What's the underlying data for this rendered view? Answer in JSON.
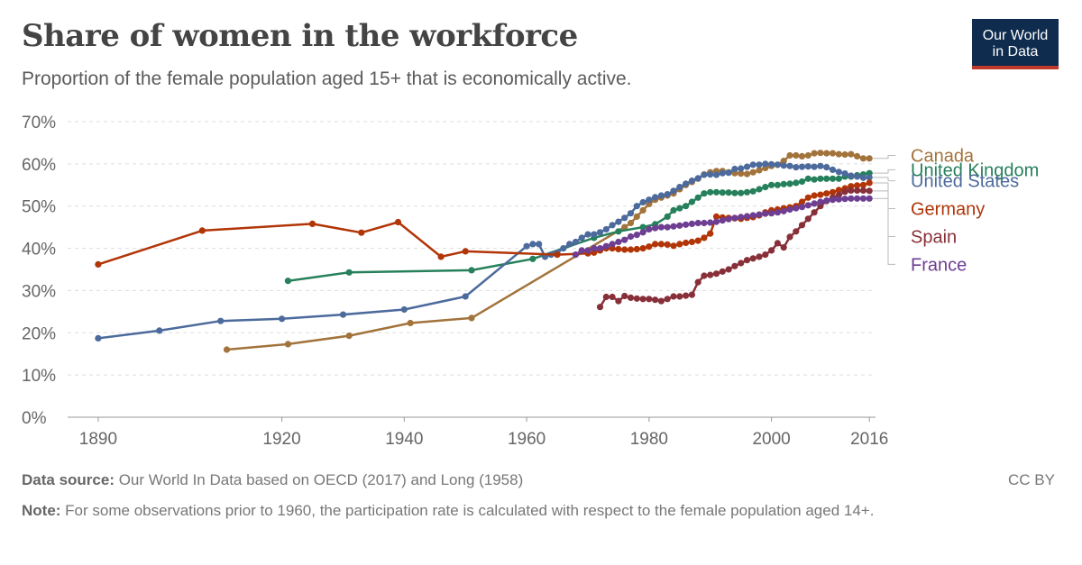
{
  "header": {
    "title": "Share of women in the workforce",
    "subtitle": "Proportion of the female population aged 15+ that is economically active.",
    "logo_line1": "Our World",
    "logo_line2": "in Data"
  },
  "footer": {
    "source_label": "Data source:",
    "source_text": " Our World In Data based on OECD (2017) and Long (1958)",
    "license": "CC BY",
    "note_label": "Note:",
    "note_text": " For some observations prior to 1960, the participation rate is calculated with respect to the female population aged 14+."
  },
  "chart_data": {
    "type": "line",
    "title": "Share of women in the workforce",
    "xlabel": "",
    "ylabel": "",
    "xlim": [
      1885,
      2017
    ],
    "ylim": [
      0,
      70
    ],
    "x_ticks": [
      1890,
      1920,
      1940,
      1960,
      1980,
      2000,
      2016
    ],
    "y_ticks": [
      0,
      10,
      20,
      30,
      40,
      50,
      60,
      70
    ],
    "y_tick_labels": [
      "0%",
      "10%",
      "20%",
      "30%",
      "40%",
      "50%",
      "60%",
      "70%"
    ],
    "grid": "horizontal dashed",
    "legend": "right end labels",
    "series": [
      {
        "name": "Canada",
        "color": "#a2733b",
        "label_y": 62.0,
        "points": [
          [
            1911,
            16
          ],
          [
            1921,
            17.3
          ],
          [
            1931,
            19.3
          ],
          [
            1941,
            22.3
          ],
          [
            1951,
            23.5
          ],
          [
            1976,
            45
          ],
          [
            1977,
            46
          ],
          [
            1978,
            47.5
          ],
          [
            1979,
            49
          ],
          [
            1980,
            50.5
          ],
          [
            1981,
            51.5
          ],
          [
            1982,
            52
          ],
          [
            1983,
            52.5
          ],
          [
            1984,
            53
          ],
          [
            1985,
            54
          ],
          [
            1986,
            55
          ],
          [
            1987,
            55.7
          ],
          [
            1988,
            56.5
          ],
          [
            1989,
            57.5
          ],
          [
            1990,
            58
          ],
          [
            1991,
            58.3
          ],
          [
            1992,
            58.3
          ],
          [
            1993,
            58
          ],
          [
            1994,
            57.8
          ],
          [
            1995,
            57.7
          ],
          [
            1996,
            57.6
          ],
          [
            1997,
            58
          ],
          [
            1998,
            58.5
          ],
          [
            1999,
            59
          ],
          [
            2000,
            59.5
          ],
          [
            2001,
            59.8
          ],
          [
            2002,
            60.7
          ],
          [
            2003,
            62
          ],
          [
            2004,
            62
          ],
          [
            2005,
            61.8
          ],
          [
            2006,
            62
          ],
          [
            2007,
            62.5
          ],
          [
            2008,
            62.6
          ],
          [
            2009,
            62.5
          ],
          [
            2010,
            62.5
          ],
          [
            2011,
            62.3
          ],
          [
            2012,
            62.2
          ],
          [
            2013,
            62.3
          ],
          [
            2014,
            61.8
          ],
          [
            2015,
            61.3
          ],
          [
            2016,
            61.3
          ]
        ]
      },
      {
        "name": "United Kingdom",
        "color": "#26805b",
        "label_y": 58.6,
        "points": [
          [
            1921,
            32.3
          ],
          [
            1931,
            34.3
          ],
          [
            1951,
            34.8
          ],
          [
            1961,
            37.5
          ],
          [
            1971,
            42.5
          ],
          [
            1975,
            44
          ],
          [
            1979,
            45
          ],
          [
            1981,
            45.7
          ],
          [
            1983,
            47.5
          ],
          [
            1984,
            49
          ],
          [
            1985,
            49.5
          ],
          [
            1986,
            50
          ],
          [
            1987,
            51
          ],
          [
            1988,
            52
          ],
          [
            1989,
            53
          ],
          [
            1990,
            53.3
          ],
          [
            1991,
            53.3
          ],
          [
            1992,
            53.2
          ],
          [
            1993,
            53.2
          ],
          [
            1994,
            53.1
          ],
          [
            1995,
            53.1
          ],
          [
            1996,
            53.3
          ],
          [
            1997,
            53.5
          ],
          [
            1998,
            54
          ],
          [
            1999,
            54.5
          ],
          [
            2000,
            55
          ],
          [
            2001,
            55
          ],
          [
            2002,
            55.2
          ],
          [
            2003,
            55.3
          ],
          [
            2004,
            55.5
          ],
          [
            2005,
            55.8
          ],
          [
            2006,
            56.5
          ],
          [
            2007,
            56.3
          ],
          [
            2008,
            56.5
          ],
          [
            2009,
            56.5
          ],
          [
            2010,
            56.5
          ],
          [
            2011,
            56.5
          ],
          [
            2012,
            57
          ],
          [
            2013,
            57
          ],
          [
            2014,
            57.3
          ],
          [
            2015,
            57.5
          ],
          [
            2016,
            57.8
          ]
        ]
      },
      {
        "name": "United States",
        "color": "#4c6a9c",
        "label_y": 56.0,
        "points": [
          [
            1890,
            18.7
          ],
          [
            1900,
            20.5
          ],
          [
            1910,
            22.8
          ],
          [
            1920,
            23.3
          ],
          [
            1930,
            24.3
          ],
          [
            1940,
            25.5
          ],
          [
            1950,
            28.6
          ],
          [
            1960,
            40.5
          ],
          [
            1961,
            41
          ],
          [
            1962,
            41
          ],
          [
            1963,
            38
          ],
          [
            1964,
            38.5
          ],
          [
            1965,
            39
          ],
          [
            1966,
            40
          ],
          [
            1967,
            41
          ],
          [
            1968,
            41.5
          ],
          [
            1969,
            42.5
          ],
          [
            1970,
            43.3
          ],
          [
            1971,
            43.3
          ],
          [
            1972,
            43.8
          ],
          [
            1973,
            44.5
          ],
          [
            1974,
            45.5
          ],
          [
            1975,
            46.3
          ],
          [
            1976,
            47.2
          ],
          [
            1977,
            48.3
          ],
          [
            1978,
            50
          ],
          [
            1979,
            50.9
          ],
          [
            1980,
            51.5
          ],
          [
            1981,
            52.1
          ],
          [
            1982,
            52.5
          ],
          [
            1983,
            52.8
          ],
          [
            1984,
            53.6
          ],
          [
            1985,
            54.5
          ],
          [
            1986,
            55.3
          ],
          [
            1987,
            56
          ],
          [
            1988,
            56.6
          ],
          [
            1989,
            57.4
          ],
          [
            1990,
            57.5
          ],
          [
            1991,
            57.4
          ],
          [
            1992,
            57.8
          ],
          [
            1993,
            57.9
          ],
          [
            1994,
            58.8
          ],
          [
            1995,
            58.9
          ],
          [
            1996,
            59.3
          ],
          [
            1997,
            59.8
          ],
          [
            1998,
            59.8
          ],
          [
            1999,
            60
          ],
          [
            2000,
            59.9
          ],
          [
            2001,
            59.8
          ],
          [
            2002,
            59.6
          ],
          [
            2003,
            59.5
          ],
          [
            2004,
            59.2
          ],
          [
            2005,
            59.3
          ],
          [
            2006,
            59.4
          ],
          [
            2007,
            59.3
          ],
          [
            2008,
            59.5
          ],
          [
            2009,
            59.2
          ],
          [
            2010,
            58.6
          ],
          [
            2011,
            58.1
          ],
          [
            2012,
            57.7
          ],
          [
            2013,
            57.2
          ],
          [
            2014,
            57
          ],
          [
            2015,
            56.7
          ],
          [
            2016,
            56.8
          ]
        ]
      },
      {
        "name": "Germany",
        "color": "#b13507",
        "label_y": 49.4,
        "points": [
          [
            1890,
            36.2
          ],
          [
            1907,
            44.2
          ],
          [
            1925,
            45.8
          ],
          [
            1933,
            43.7
          ],
          [
            1939,
            46.2
          ],
          [
            1946,
            38
          ],
          [
            1950,
            39.3
          ],
          [
            1965,
            38.5
          ],
          [
            1970,
            38.8
          ],
          [
            1971,
            39
          ],
          [
            1972,
            39.5
          ],
          [
            1973,
            40
          ],
          [
            1974,
            40
          ],
          [
            1975,
            39.8
          ],
          [
            1976,
            39.7
          ],
          [
            1977,
            39.7
          ],
          [
            1978,
            39.8
          ],
          [
            1979,
            40
          ],
          [
            1980,
            40.4
          ],
          [
            1981,
            41
          ],
          [
            1982,
            41
          ],
          [
            1983,
            40.9
          ],
          [
            1984,
            40.6
          ],
          [
            1985,
            41
          ],
          [
            1986,
            41.3
          ],
          [
            1987,
            41.5
          ],
          [
            1988,
            41.8
          ],
          [
            1989,
            42.5
          ],
          [
            1990,
            43.5
          ],
          [
            1991,
            47.5
          ],
          [
            1992,
            47.3
          ],
          [
            1993,
            47.2
          ],
          [
            1994,
            47.1
          ],
          [
            1995,
            47
          ],
          [
            1996,
            47.2
          ],
          [
            1997,
            47.4
          ],
          [
            1998,
            47.8
          ],
          [
            1999,
            48.5
          ],
          [
            2000,
            49
          ],
          [
            2001,
            49.2
          ],
          [
            2002,
            49.5
          ],
          [
            2003,
            49.7
          ],
          [
            2004,
            50
          ],
          [
            2005,
            51
          ],
          [
            2006,
            52
          ],
          [
            2007,
            52.5
          ],
          [
            2008,
            52.7
          ],
          [
            2009,
            53
          ],
          [
            2010,
            53.3
          ],
          [
            2011,
            53.8
          ],
          [
            2012,
            54.2
          ],
          [
            2013,
            54.7
          ],
          [
            2014,
            54.9
          ],
          [
            2015,
            55
          ],
          [
            2016,
            55.5
          ]
        ]
      },
      {
        "name": "Spain",
        "color": "#883039",
        "label_y": 42.8,
        "points": [
          [
            1972,
            26.1
          ],
          [
            1973,
            28.5
          ],
          [
            1974,
            28.5
          ],
          [
            1975,
            27.5
          ],
          [
            1976,
            28.7
          ],
          [
            1977,
            28.3
          ],
          [
            1978,
            28.1
          ],
          [
            1979,
            28
          ],
          [
            1980,
            28
          ],
          [
            1981,
            27.8
          ],
          [
            1982,
            27.5
          ],
          [
            1983,
            28
          ],
          [
            1984,
            28.6
          ],
          [
            1985,
            28.6
          ],
          [
            1986,
            28.8
          ],
          [
            1987,
            29
          ],
          [
            1988,
            32
          ],
          [
            1989,
            33.5
          ],
          [
            1990,
            33.7
          ],
          [
            1991,
            34
          ],
          [
            1992,
            34.5
          ],
          [
            1993,
            35
          ],
          [
            1994,
            35.8
          ],
          [
            1995,
            36.5
          ],
          [
            1996,
            37.2
          ],
          [
            1997,
            37.6
          ],
          [
            1998,
            38
          ],
          [
            1999,
            38.5
          ],
          [
            2000,
            39.5
          ],
          [
            2001,
            41.2
          ],
          [
            2002,
            40.2
          ],
          [
            2003,
            42.7
          ],
          [
            2004,
            44
          ],
          [
            2005,
            45.5
          ],
          [
            2006,
            47
          ],
          [
            2007,
            48.5
          ],
          [
            2008,
            50
          ],
          [
            2009,
            51.2
          ],
          [
            2010,
            52
          ],
          [
            2011,
            52.6
          ],
          [
            2012,
            53.4
          ],
          [
            2013,
            53.7
          ],
          [
            2014,
            53.7
          ],
          [
            2015,
            53.7
          ],
          [
            2016,
            53.6
          ]
        ]
      },
      {
        "name": "France",
        "color": "#6d3e91",
        "label_y": 36.2,
        "points": [
          [
            1968,
            38.5
          ],
          [
            1969,
            39.5
          ],
          [
            1970,
            39.5
          ],
          [
            1971,
            40
          ],
          [
            1972,
            40
          ],
          [
            1973,
            40.5
          ],
          [
            1974,
            41
          ],
          [
            1975,
            41.5
          ],
          [
            1976,
            42
          ],
          [
            1977,
            42.8
          ],
          [
            1978,
            43.2
          ],
          [
            1979,
            43.8
          ],
          [
            1980,
            44.5
          ],
          [
            1981,
            44.8
          ],
          [
            1982,
            45
          ],
          [
            1983,
            45
          ],
          [
            1984,
            45.2
          ],
          [
            1985,
            45.4
          ],
          [
            1986,
            45.6
          ],
          [
            1987,
            45.8
          ],
          [
            1988,
            46
          ],
          [
            1989,
            46
          ],
          [
            1990,
            46.1
          ],
          [
            1991,
            46.3
          ],
          [
            1992,
            46.6
          ],
          [
            1993,
            46.9
          ],
          [
            1994,
            47.2
          ],
          [
            1995,
            47.4
          ],
          [
            1996,
            47.6
          ],
          [
            1997,
            47.8
          ],
          [
            1998,
            48
          ],
          [
            1999,
            48.2
          ],
          [
            2000,
            48.3
          ],
          [
            2001,
            48.5
          ],
          [
            2002,
            48.8
          ],
          [
            2003,
            49.2
          ],
          [
            2004,
            49.5
          ],
          [
            2005,
            49.8
          ],
          [
            2006,
            50.2
          ],
          [
            2007,
            50.6
          ],
          [
            2008,
            51
          ],
          [
            2009,
            51.3
          ],
          [
            2010,
            51.5
          ],
          [
            2011,
            51.6
          ],
          [
            2012,
            51.7
          ],
          [
            2013,
            51.8
          ],
          [
            2014,
            51.8
          ],
          [
            2015,
            51.8
          ],
          [
            2016,
            51.8
          ]
        ]
      }
    ]
  }
}
